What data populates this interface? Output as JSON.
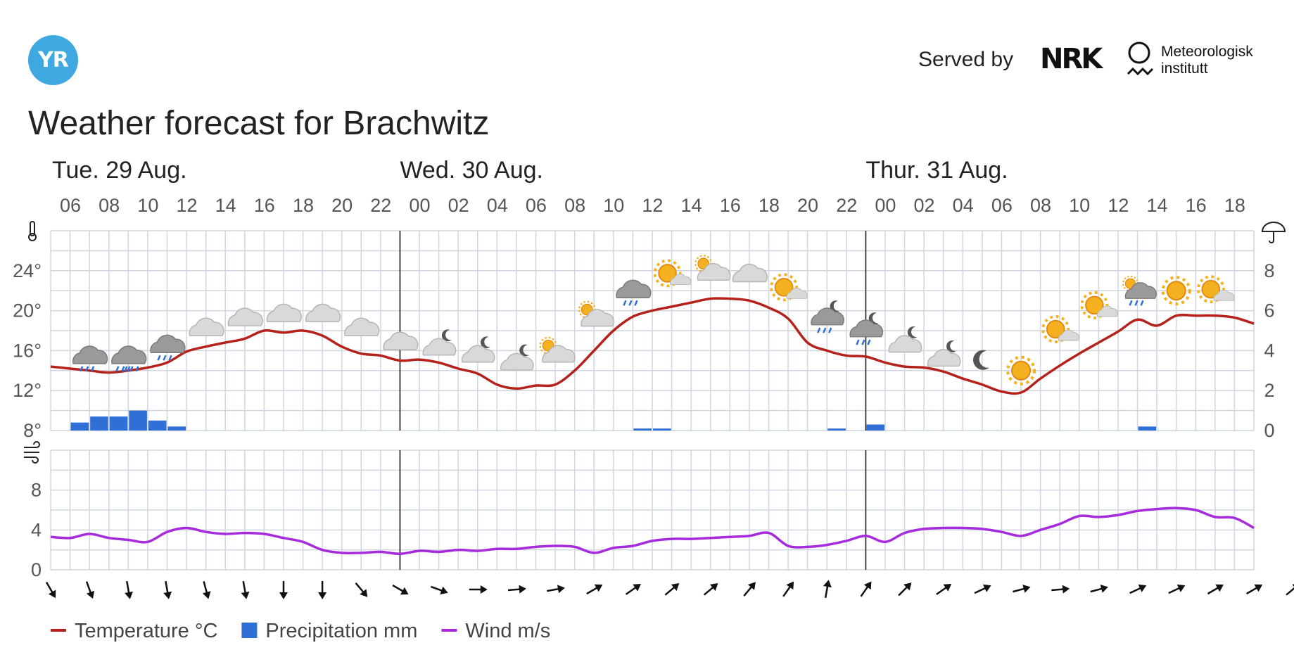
{
  "header": {
    "logo_text": "YR",
    "served_by": "Served by",
    "nrk_logo": "NRK",
    "met_line1": "Meteorologisk",
    "met_line2": "institutt",
    "title": "Weather forecast for Brachwitz"
  },
  "chart_data": {
    "type": "line",
    "days": [
      {
        "label": "Tue. 29 Aug.",
        "start_hour_index": 0
      },
      {
        "label": "Wed. 30 Aug.",
        "start_hour_index": 18
      },
      {
        "label": "Thur. 31 Aug.",
        "start_hour_index": 42
      }
    ],
    "hour_labels": [
      "06",
      "08",
      "10",
      "12",
      "14",
      "16",
      "18",
      "20",
      "22",
      "00",
      "02",
      "04",
      "06",
      "08",
      "10",
      "12",
      "14",
      "16",
      "18",
      "20",
      "22",
      "00",
      "02",
      "04",
      "06",
      "08",
      "10",
      "12",
      "14",
      "16",
      "18"
    ],
    "hours": [
      6,
      7,
      8,
      9,
      10,
      11,
      12,
      13,
      14,
      15,
      16,
      17,
      18,
      19,
      20,
      21,
      22,
      23,
      0,
      1,
      2,
      3,
      4,
      5,
      6,
      7,
      8,
      9,
      10,
      11,
      12,
      13,
      14,
      15,
      16,
      17,
      18,
      19,
      20,
      21,
      22,
      23,
      0,
      1,
      2,
      3,
      4,
      5,
      6,
      7,
      8,
      9,
      10,
      11,
      12,
      13,
      14,
      15,
      16,
      17,
      18,
      19,
      20
    ],
    "temperature_axis": {
      "unit": "°",
      "ticks": [
        8,
        12,
        16,
        20,
        24
      ],
      "range": [
        8,
        28
      ]
    },
    "precipitation_axis": {
      "ticks": [
        0,
        2,
        4,
        6,
        8
      ],
      "range": [
        0,
        10
      ]
    },
    "wind_axis": {
      "ticks": [
        0,
        4,
        8
      ],
      "range": [
        0,
        12
      ]
    },
    "series": [
      {
        "name": "Temperature °C",
        "color": "#b5211b",
        "values": [
          14.4,
          14.2,
          14.0,
          13.8,
          14.0,
          14.3,
          14.8,
          15.9,
          16.4,
          16.8,
          17.2,
          18.0,
          17.8,
          18.0,
          17.5,
          16.4,
          15.7,
          15.5,
          15.0,
          15.1,
          14.8,
          14.2,
          13.7,
          12.6,
          12.2,
          12.5,
          12.6,
          14.0,
          16.0,
          18.0,
          19.4,
          20.0,
          20.4,
          20.8,
          21.2,
          21.2,
          21.0,
          20.3,
          19.2,
          16.8,
          16.0,
          15.5,
          15.4,
          14.8,
          14.4,
          14.3,
          13.9,
          13.2,
          12.6,
          11.9,
          11.8,
          13.2,
          14.5,
          15.7,
          16.8,
          17.9,
          19.1,
          18.5,
          19.5,
          19.5,
          19.5,
          19.3,
          18.7
        ]
      },
      {
        "name": "Precipitation mm",
        "color": "#2f6fd6",
        "values": [
          0,
          0.4,
          0.7,
          0.7,
          1.0,
          0.5,
          0.2,
          0,
          0,
          0,
          0,
          0,
          0,
          0,
          0,
          0,
          0,
          0,
          0,
          0,
          0,
          0,
          0,
          0,
          0,
          0,
          0,
          0,
          0,
          0,
          0.1,
          0.1,
          0,
          0,
          0,
          0,
          0,
          0,
          0,
          0,
          0.1,
          0,
          0.3,
          0,
          0,
          0,
          0,
          0,
          0,
          0,
          0,
          0,
          0,
          0,
          0,
          0,
          0.2,
          0,
          0,
          0,
          0,
          0,
          0
        ]
      },
      {
        "name": "Wind m/s",
        "color": "#a62bdd",
        "values": [
          3.3,
          3.2,
          3.6,
          3.2,
          3.0,
          2.8,
          3.8,
          4.2,
          3.8,
          3.6,
          3.7,
          3.6,
          3.2,
          2.8,
          2.0,
          1.7,
          1.7,
          1.8,
          1.6,
          1.9,
          1.8,
          2.0,
          1.9,
          2.1,
          2.1,
          2.3,
          2.4,
          2.3,
          1.7,
          2.2,
          2.4,
          2.9,
          3.1,
          3.1,
          3.2,
          3.3,
          3.4,
          3.7,
          2.4,
          2.3,
          2.5,
          2.9,
          3.4,
          2.8,
          3.7,
          4.1,
          4.2,
          4.2,
          4.1,
          3.8,
          3.4,
          4.0,
          4.6,
          5.4,
          5.3,
          5.5,
          5.9,
          6.1,
          6.2,
          6.0,
          5.3,
          5.2,
          4.2
        ]
      }
    ],
    "weather_symbols": [
      {
        "hour_index": 2,
        "symbol": "rain-cloud-icon",
        "temp": 15.4
      },
      {
        "hour_index": 4,
        "symbol": "heavy-rain-cloud-icon",
        "temp": 15.4
      },
      {
        "hour_index": 6,
        "symbol": "rain-cloud-icon",
        "temp": 16.5
      },
      {
        "hour_index": 8,
        "symbol": "cloud-icon",
        "temp": 18.2
      },
      {
        "hour_index": 10,
        "symbol": "cloud-icon",
        "temp": 19.2
      },
      {
        "hour_index": 12,
        "symbol": "cloud-icon",
        "temp": 19.6
      },
      {
        "hour_index": 14,
        "symbol": "cloud-icon",
        "temp": 19.6
      },
      {
        "hour_index": 16,
        "symbol": "cloud-icon",
        "temp": 18.2
      },
      {
        "hour_index": 18,
        "symbol": "cloud-icon",
        "temp": 16.8
      },
      {
        "hour_index": 20,
        "symbol": "cloud-moon-icon",
        "temp": 16.5
      },
      {
        "hour_index": 22,
        "symbol": "cloud-moon-icon",
        "temp": 15.8
      },
      {
        "hour_index": 24,
        "symbol": "cloud-moon-icon",
        "temp": 15.0
      },
      {
        "hour_index": 26,
        "symbol": "cloud-sun-icon",
        "temp": 15.8
      },
      {
        "hour_index": 28,
        "symbol": "cloud-sun-icon",
        "temp": 19.4
      },
      {
        "hour_index": 30,
        "symbol": "rain-cloud-icon",
        "temp": 22.0
      },
      {
        "hour_index": 32,
        "symbol": "sun-cloud-icon",
        "temp": 23.6
      },
      {
        "hour_index": 34,
        "symbol": "cloud-sun-icon",
        "temp": 24.0
      },
      {
        "hour_index": 36,
        "symbol": "cloud-icon",
        "temp": 23.6
      },
      {
        "hour_index": 38,
        "symbol": "sun-cloud-icon",
        "temp": 22.2
      },
      {
        "hour_index": 40,
        "symbol": "rain-moon-icon",
        "temp": 19.4
      },
      {
        "hour_index": 42,
        "symbol": "rain-moon-icon",
        "temp": 18.2
      },
      {
        "hour_index": 44,
        "symbol": "cloud-moon-icon",
        "temp": 16.8
      },
      {
        "hour_index": 46,
        "symbol": "cloud-moon-icon",
        "temp": 15.4
      },
      {
        "hour_index": 48,
        "symbol": "moon-icon",
        "temp": 15.0
      },
      {
        "hour_index": 50,
        "symbol": "sun-icon",
        "temp": 14.0
      },
      {
        "hour_index": 52,
        "symbol": "sun-cloud-icon",
        "temp": 18.0
      },
      {
        "hour_index": 54,
        "symbol": "sun-cloud-icon",
        "temp": 20.4
      },
      {
        "hour_index": 56,
        "symbol": "rain-sun-cloud-icon",
        "temp": 22.0
      },
      {
        "hour_index": 58,
        "symbol": "sun-icon",
        "temp": 22.0
      },
      {
        "hour_index": 60,
        "symbol": "sun-cloud-icon",
        "temp": 22.0
      }
    ],
    "wind_directions_deg": [
      330,
      340,
      350,
      350,
      345,
      350,
      360,
      360,
      320,
      300,
      290,
      270,
      265,
      260,
      240,
      235,
      230,
      230,
      220,
      215,
      190,
      215,
      225,
      235,
      245,
      255,
      265,
      255,
      245,
      245,
      240,
      240,
      230
    ],
    "legend": [
      {
        "label": "Temperature °C",
        "color": "#b5211b",
        "kind": "line"
      },
      {
        "label": "Precipitation mm",
        "color": "#2f6fd6",
        "kind": "box"
      },
      {
        "label": "Wind m/s",
        "color": "#a62bdd",
        "kind": "line"
      }
    ],
    "grid": true,
    "legend_position": "bottom-left"
  }
}
